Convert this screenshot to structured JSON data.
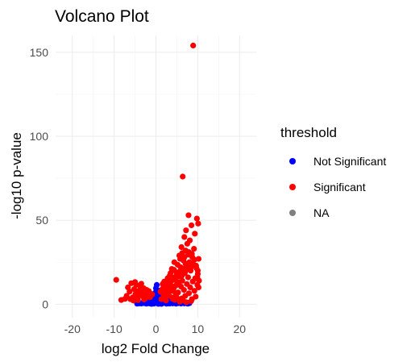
{
  "chart_data": {
    "type": "scatter",
    "title": "Volcano Plot",
    "xlabel": "log2 Fold Change",
    "ylabel": "-log10 p-value",
    "xlim": [
      -24,
      24
    ],
    "ylim": [
      -8,
      160
    ],
    "x_ticks": [
      -20,
      -10,
      0,
      10,
      20
    ],
    "y_ticks": [
      0,
      50,
      100,
      150
    ],
    "grid": true,
    "legend": {
      "title": "threshold",
      "placement": "right",
      "entries": [
        {
          "label": "Not Significant",
          "color": "#0000ff"
        },
        {
          "label": "Significant",
          "color": "#ff0000"
        },
        {
          "label": "NA",
          "color": "#808080"
        }
      ]
    },
    "series": [
      {
        "name": "Not Significant",
        "color": "#0000ff",
        "points": [
          [
            -3.5,
            0.4
          ],
          [
            -3.2,
            0.8
          ],
          [
            -3,
            1.2
          ],
          [
            -2.8,
            0.6
          ],
          [
            -2.5,
            1.5
          ],
          [
            -2.3,
            0.3
          ],
          [
            -2.1,
            1.8
          ],
          [
            -2,
            0.9
          ],
          [
            -1.8,
            2.2
          ],
          [
            -1.6,
            0.5
          ],
          [
            -1.5,
            1.4
          ],
          [
            -1.3,
            2.6
          ],
          [
            -1.2,
            0.7
          ],
          [
            -1,
            3.1
          ],
          [
            -0.9,
            1.1
          ],
          [
            -0.8,
            4.2
          ],
          [
            -0.6,
            2.0
          ],
          [
            -0.5,
            5.6
          ],
          [
            -0.4,
            0.4
          ],
          [
            -0.3,
            3.3
          ],
          [
            -0.2,
            6.8
          ],
          [
            -0.1,
            1.6
          ],
          [
            0,
            9.5
          ],
          [
            0,
            4.5
          ],
          [
            0.1,
            2.3
          ],
          [
            0.2,
            11.5
          ],
          [
            0.3,
            7.4
          ],
          [
            0.4,
            0.9
          ],
          [
            0.5,
            5.2
          ],
          [
            0.6,
            3.0
          ],
          [
            0.7,
            1.4
          ],
          [
            0.8,
            8.1
          ],
          [
            0.9,
            0.6
          ],
          [
            1,
            2.7
          ],
          [
            1.1,
            4.6
          ],
          [
            1.2,
            1.1
          ],
          [
            1.4,
            3.5
          ],
          [
            1.5,
            0.5
          ],
          [
            1.7,
            2.4
          ],
          [
            1.9,
            1.3
          ],
          [
            2,
            3.9
          ],
          [
            2.2,
            0.7
          ],
          [
            2.4,
            2.1
          ],
          [
            2.6,
            1.5
          ],
          [
            2.8,
            0.4
          ],
          [
            3,
            2.9
          ],
          [
            3.2,
            1.2
          ],
          [
            3.5,
            0.8
          ],
          [
            3.8,
            1.9
          ],
          [
            4,
            0.5
          ],
          [
            4.3,
            1.5
          ],
          [
            4.6,
            0.9
          ],
          [
            5,
            1.3
          ],
          [
            5.3,
            0.6
          ],
          [
            5.7,
            1.1
          ],
          [
            6,
            0.4
          ],
          [
            6.4,
            0.9
          ],
          [
            6.8,
            0.5
          ],
          [
            7.2,
            0.8
          ],
          [
            7.6,
            0.3
          ],
          [
            8,
            0.6
          ],
          [
            -4,
            0.5
          ],
          [
            -4.5,
            0.3
          ],
          [
            1.3,
            0.2
          ],
          [
            2.5,
            0.3
          ],
          [
            0.6,
            0.2
          ],
          [
            -1.1,
            0.2
          ],
          [
            3.3,
            0.4
          ],
          [
            4.8,
            0.3
          ],
          [
            -0.7,
            0.3
          ]
        ]
      },
      {
        "name": "Significant",
        "color": "#ff0000",
        "points": [
          [
            8.9,
            154
          ],
          [
            6.4,
            76
          ],
          [
            7.8,
            53
          ],
          [
            9.8,
            51
          ],
          [
            10.1,
            48
          ],
          [
            8.5,
            47
          ],
          [
            7.2,
            44
          ],
          [
            9.3,
            42
          ],
          [
            6.8,
            40
          ],
          [
            8.1,
            38
          ],
          [
            7.5,
            36
          ],
          [
            6.1,
            34
          ],
          [
            9.1,
            33
          ],
          [
            7.9,
            31
          ],
          [
            5.6,
            29
          ],
          [
            8.7,
            28
          ],
          [
            10.2,
            27
          ],
          [
            6.6,
            26
          ],
          [
            4.4,
            25
          ],
          [
            7.1,
            24
          ],
          [
            9.6,
            23
          ],
          [
            5.9,
            22
          ],
          [
            3.8,
            21
          ],
          [
            8.3,
            20
          ],
          [
            4.9,
            19
          ],
          [
            6.9,
            18.5
          ],
          [
            10,
            18
          ],
          [
            3.3,
            17
          ],
          [
            5.4,
            16.5
          ],
          [
            7.7,
            16
          ],
          [
            9.4,
            15.5
          ],
          [
            2.9,
            15
          ],
          [
            4.6,
            14.5
          ],
          [
            6.3,
            14
          ],
          [
            8.8,
            13.5
          ],
          [
            2.5,
            13
          ],
          [
            5.1,
            12.5
          ],
          [
            7.4,
            12
          ],
          [
            9.9,
            11.5
          ],
          [
            3.6,
            11
          ],
          [
            6,
            10.5
          ],
          [
            8.2,
            10
          ],
          [
            2.2,
            9.5
          ],
          [
            4.2,
            9
          ],
          [
            6.7,
            8.5
          ],
          [
            9.2,
            8
          ],
          [
            3.1,
            7.5
          ],
          [
            5.3,
            7
          ],
          [
            7.9,
            6.5
          ],
          [
            2.7,
            6
          ],
          [
            4.8,
            5.5
          ],
          [
            7,
            5
          ],
          [
            9.5,
            4.5
          ],
          [
            3.9,
            4
          ],
          [
            6.2,
            3.5
          ],
          [
            8.6,
            3
          ],
          [
            4.5,
            2.6
          ],
          [
            6.5,
            2.2
          ],
          [
            8.4,
            1.8
          ],
          [
            5.7,
            1.5
          ],
          [
            7.3,
            1.2
          ],
          [
            -9.5,
            14.5
          ],
          [
            -8.3,
            2.5
          ],
          [
            -7,
            5
          ],
          [
            -6.7,
            10
          ],
          [
            -6.3,
            7.5
          ],
          [
            -5.9,
            12.5
          ],
          [
            -5.6,
            4
          ],
          [
            -5.2,
            9
          ],
          [
            -4.9,
            6
          ],
          [
            -4.7,
            11.5
          ],
          [
            -4.4,
            3.5
          ],
          [
            -4.1,
            8
          ],
          [
            -3.9,
            5.5
          ],
          [
            -3.7,
            10.5
          ],
          [
            -3.4,
            7
          ],
          [
            -3.1,
            4.5
          ],
          [
            -2.9,
            9.5
          ],
          [
            -2.6,
            6.5
          ],
          [
            -2.4,
            3.8
          ],
          [
            -2.2,
            8.5
          ],
          [
            -1.9,
            5.2
          ],
          [
            -1.7,
            7.8
          ],
          [
            -1.4,
            4.2
          ],
          [
            -1.2,
            6.2
          ],
          [
            -0.9,
            5.8
          ],
          [
            -6.1,
            3
          ],
          [
            -5.4,
            2.2
          ],
          [
            -7.4,
            3.2
          ],
          [
            -4.3,
            2.4
          ],
          [
            -2.8,
            2.8
          ],
          [
            -3.5,
            12.2
          ],
          [
            -5,
            13.2
          ],
          [
            1.1,
            7.5
          ],
          [
            1.5,
            9
          ],
          [
            1.8,
            6
          ],
          [
            2.1,
            4.5
          ],
          [
            2.3,
            11
          ],
          [
            2.6,
            8.2
          ],
          [
            3,
            12.5
          ],
          [
            3.4,
            9.5
          ],
          [
            3.7,
            13.8
          ],
          [
            4.1,
            7.8
          ],
          [
            4.4,
            16
          ],
          [
            4.7,
            11
          ],
          [
            5,
            18
          ],
          [
            5.5,
            13
          ],
          [
            5.8,
            19.5
          ],
          [
            6.2,
            17
          ],
          [
            6.6,
            21
          ],
          [
            7,
            19.5
          ],
          [
            7.3,
            23
          ],
          [
            7.6,
            21.5
          ],
          [
            8,
            25
          ],
          [
            8.4,
            22
          ],
          [
            8.9,
            24
          ],
          [
            9.2,
            26.5
          ],
          [
            9.7,
            21.5
          ],
          [
            10,
            20
          ],
          [
            10.3,
            14
          ],
          [
            9.9,
            16.2
          ],
          [
            10.2,
            10
          ],
          [
            5.2,
            23.5
          ],
          [
            4.3,
            20.5
          ],
          [
            3.5,
            18.5
          ],
          [
            2.8,
            15.5
          ],
          [
            2,
            13.5
          ],
          [
            1.6,
            12
          ],
          [
            6.8,
            28
          ],
          [
            7.7,
            29.5
          ],
          [
            8.6,
            30
          ],
          [
            5.8,
            27
          ],
          [
            6.3,
            30.5
          ],
          [
            7.1,
            32
          ],
          [
            3.2,
            5
          ],
          [
            4,
            3.2
          ],
          [
            5,
            4
          ],
          [
            2.4,
            2.2
          ],
          [
            1.3,
            3
          ]
        ]
      }
    ]
  }
}
